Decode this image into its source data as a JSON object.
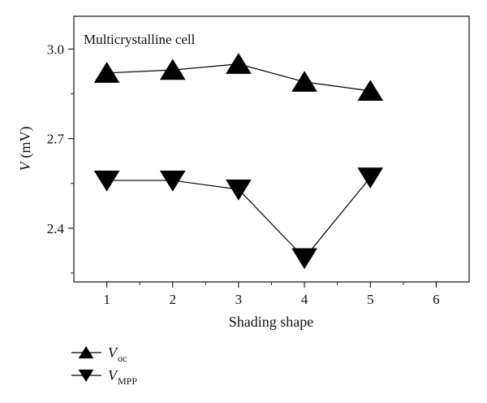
{
  "chart_data": {
    "type": "line",
    "annotation": "Multicrystalline cell",
    "xlabel": "Shading shape",
    "ylabel_var": "V",
    "ylabel_unit": "(mV)",
    "xlim": [
      0.5,
      6.5
    ],
    "ylim": [
      2.22,
      3.11
    ],
    "x_ticks": [
      1,
      2,
      3,
      4,
      5,
      6
    ],
    "y_ticks": [
      2.4,
      2.7,
      3.0
    ],
    "y_tick_labels": [
      "2.4",
      "2.7",
      "3.0"
    ],
    "grid": false,
    "legend_position": "below-left",
    "series": [
      {
        "name": "V",
        "name_sub": "oc",
        "marker": "triangle-up",
        "color": "#000000",
        "x": [
          1,
          2,
          3,
          4,
          5
        ],
        "y": [
          2.92,
          2.93,
          2.95,
          2.89,
          2.86
        ]
      },
      {
        "name": "V",
        "name_sub": "MPP",
        "marker": "triangle-down",
        "color": "#000000",
        "x": [
          1,
          2,
          3,
          4,
          5
        ],
        "y": [
          2.56,
          2.56,
          2.53,
          2.3,
          2.57
        ]
      }
    ]
  }
}
